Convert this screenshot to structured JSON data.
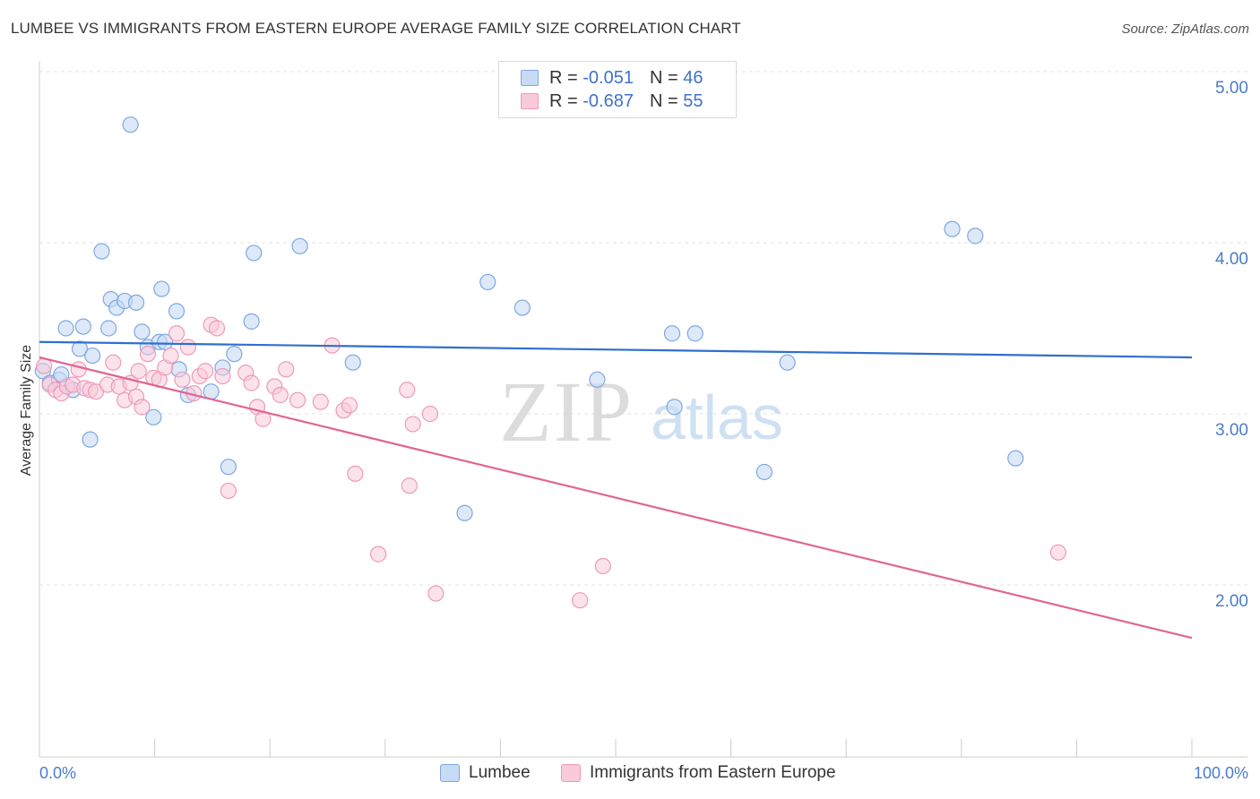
{
  "title": "LUMBEE VS IMMIGRANTS FROM EASTERN EUROPE AVERAGE FAMILY SIZE CORRELATION CHART",
  "source": "Source: ZipAtlas.com",
  "watermark": {
    "zip": "ZIP",
    "atlas": "atlas"
  },
  "legend": {
    "series1": {
      "r_label": "R =",
      "r_value": "-0.051",
      "n_label": "N =",
      "n_value": "46"
    },
    "series2": {
      "r_label": "R =",
      "r_value": "-0.687",
      "n_label": "N =",
      "n_value": "55"
    }
  },
  "bottom_legend": {
    "series1": "Lumbee",
    "series2": "Immigrants from Eastern Europe"
  },
  "chart_data": {
    "type": "scatter",
    "title": "LUMBEE VS IMMIGRANTS FROM EASTERN EUROPE AVERAGE FAMILY SIZE CORRELATION CHART",
    "xlabel": "",
    "ylabel": "Average Family Size",
    "xlim": [
      0,
      100
    ],
    "ylim": [
      1.0,
      5.1
    ],
    "x_tick_labels": [
      "0.0%",
      "100.0%"
    ],
    "y_ticks": [
      2.0,
      3.0,
      4.0,
      5.0
    ],
    "y_tick_labels": [
      "2.00",
      "3.00",
      "4.00",
      "5.00"
    ],
    "grid": true,
    "colors": {
      "series1_fill": "#c7dbf5",
      "series1_stroke": "#7ea8e0",
      "series1_line": "#2f6fd0",
      "series2_fill": "#f8cada",
      "series2_stroke": "#ee9ab8",
      "series2_line": "#e06592",
      "tick": "#4a7cc9",
      "grid": "#e2e2e2"
    },
    "series": [
      {
        "name": "Lumbee",
        "r": -0.051,
        "n": 46,
        "trend": {
          "x": [
            0,
            100
          ],
          "y": [
            3.42,
            3.33
          ]
        },
        "points": [
          [
            0.3,
            3.25
          ],
          [
            0.9,
            3.18
          ],
          [
            1.7,
            3.2
          ],
          [
            1.9,
            3.23
          ],
          [
            2.3,
            3.5
          ],
          [
            2.9,
            3.14
          ],
          [
            3.5,
            3.38
          ],
          [
            3.8,
            3.51
          ],
          [
            4.4,
            2.85
          ],
          [
            4.6,
            3.34
          ],
          [
            5.4,
            3.95
          ],
          [
            6.0,
            3.5
          ],
          [
            6.2,
            3.67
          ],
          [
            6.7,
            3.62
          ],
          [
            7.4,
            3.66
          ],
          [
            7.9,
            4.69
          ],
          [
            8.4,
            3.65
          ],
          [
            8.9,
            3.48
          ],
          [
            9.4,
            3.39
          ],
          [
            9.9,
            2.98
          ],
          [
            10.4,
            3.42
          ],
          [
            10.6,
            3.73
          ],
          [
            10.9,
            3.42
          ],
          [
            11.9,
            3.6
          ],
          [
            12.1,
            3.26
          ],
          [
            12.9,
            3.11
          ],
          [
            14.9,
            3.13
          ],
          [
            15.9,
            3.27
          ],
          [
            16.4,
            2.69
          ],
          [
            16.9,
            3.35
          ],
          [
            18.4,
            3.54
          ],
          [
            18.6,
            3.94
          ],
          [
            22.6,
            3.98
          ],
          [
            27.2,
            3.3
          ],
          [
            36.9,
            2.42
          ],
          [
            38.9,
            3.77
          ],
          [
            41.9,
            3.62
          ],
          [
            48.4,
            3.2
          ],
          [
            54.9,
            3.47
          ],
          [
            55.1,
            3.04
          ],
          [
            56.9,
            3.47
          ],
          [
            62.9,
            2.66
          ],
          [
            64.9,
            3.3
          ],
          [
            79.2,
            4.08
          ],
          [
            81.2,
            4.04
          ],
          [
            84.7,
            2.74
          ]
        ]
      },
      {
        "name": "Immigrants from Eastern Europe",
        "r": -0.687,
        "n": 55,
        "trend": {
          "x": [
            0,
            100
          ],
          "y": [
            3.33,
            1.69
          ]
        },
        "points": [
          [
            0.4,
            3.28
          ],
          [
            0.9,
            3.17
          ],
          [
            1.4,
            3.14
          ],
          [
            1.9,
            3.12
          ],
          [
            2.4,
            3.16
          ],
          [
            2.9,
            3.17
          ],
          [
            3.4,
            3.26
          ],
          [
            3.9,
            3.15
          ],
          [
            4.4,
            3.14
          ],
          [
            4.9,
            3.13
          ],
          [
            5.9,
            3.17
          ],
          [
            6.4,
            3.3
          ],
          [
            6.9,
            3.16
          ],
          [
            7.4,
            3.08
          ],
          [
            7.9,
            3.18
          ],
          [
            8.4,
            3.1
          ],
          [
            8.6,
            3.25
          ],
          [
            8.9,
            3.04
          ],
          [
            9.4,
            3.35
          ],
          [
            9.9,
            3.21
          ],
          [
            10.4,
            3.2
          ],
          [
            10.9,
            3.27
          ],
          [
            11.4,
            3.34
          ],
          [
            11.9,
            3.47
          ],
          [
            12.4,
            3.2
          ],
          [
            12.9,
            3.39
          ],
          [
            13.4,
            3.12
          ],
          [
            13.9,
            3.22
          ],
          [
            14.4,
            3.25
          ],
          [
            14.9,
            3.52
          ],
          [
            15.4,
            3.5
          ],
          [
            15.9,
            3.22
          ],
          [
            16.4,
            2.55
          ],
          [
            17.9,
            3.24
          ],
          [
            18.4,
            3.18
          ],
          [
            18.9,
            3.04
          ],
          [
            19.4,
            2.97
          ],
          [
            20.4,
            3.16
          ],
          [
            20.9,
            3.11
          ],
          [
            21.4,
            3.26
          ],
          [
            22.4,
            3.08
          ],
          [
            24.4,
            3.07
          ],
          [
            25.4,
            3.4
          ],
          [
            26.4,
            3.02
          ],
          [
            26.9,
            3.05
          ],
          [
            27.4,
            2.65
          ],
          [
            29.4,
            2.18
          ],
          [
            31.9,
            3.14
          ],
          [
            32.1,
            2.58
          ],
          [
            32.4,
            2.94
          ],
          [
            33.9,
            3.0
          ],
          [
            34.4,
            1.95
          ],
          [
            46.9,
            1.91
          ],
          [
            48.9,
            2.11
          ],
          [
            88.4,
            2.19
          ]
        ]
      }
    ]
  }
}
